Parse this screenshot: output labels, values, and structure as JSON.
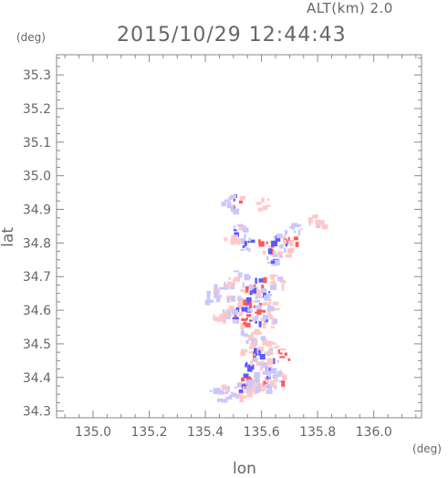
{
  "header": {
    "altitude_label": "ALT(km) 2.0",
    "timestamp": "2015/10/29 12:44:43"
  },
  "chart_data": {
    "type": "heatmap",
    "title": "2015/10/29 12:44:43",
    "subtitle": "ALT(km) 2.0",
    "xlabel": "lon",
    "ylabel": "lat",
    "x_unit": "(deg)",
    "y_unit": "(deg)",
    "xlim": [
      134.87,
      136.17
    ],
    "ylim": [
      34.28,
      35.36
    ],
    "x_ticks": [
      "135.0",
      "135.2",
      "135.4",
      "135.6",
      "135.8",
      "136.0"
    ],
    "y_ticks": [
      "34.3",
      "34.4",
      "34.5",
      "34.6",
      "34.7",
      "34.8",
      "34.9",
      "35.0",
      "35.1",
      "35.2",
      "35.3"
    ],
    "grid": false,
    "colors": {
      "positive": "#ff5a5a",
      "negative": "#5a5aff",
      "weak_positive": "#ffc8c8",
      "weak_negative": "#c8c8ff"
    },
    "blobs": [
      {
        "lon": 135.5,
        "lat": 34.93,
        "value": 0.8
      },
      {
        "lon": 135.48,
        "lat": 34.92,
        "value": -0.4
      },
      {
        "lon": 135.52,
        "lat": 34.84,
        "value": -0.6
      },
      {
        "lon": 135.49,
        "lat": 34.82,
        "value": 0.3
      },
      {
        "lon": 135.55,
        "lat": 34.8,
        "value": -0.8
      },
      {
        "lon": 135.61,
        "lat": 34.8,
        "value": 0.9
      },
      {
        "lon": 135.66,
        "lat": 34.82,
        "value": -0.7
      },
      {
        "lon": 135.7,
        "lat": 34.81,
        "value": 0.9
      },
      {
        "lon": 135.72,
        "lat": 34.85,
        "value": -0.5
      },
      {
        "lon": 135.63,
        "lat": 34.76,
        "value": -0.6
      },
      {
        "lon": 135.68,
        "lat": 34.78,
        "value": 0.4
      },
      {
        "lon": 135.45,
        "lat": 34.67,
        "value": -0.5
      },
      {
        "lon": 135.49,
        "lat": 34.69,
        "value": 0.4
      },
      {
        "lon": 135.52,
        "lat": 34.7,
        "value": -0.3
      },
      {
        "lon": 135.55,
        "lat": 34.66,
        "value": 0.7
      },
      {
        "lon": 135.58,
        "lat": 34.68,
        "value": -0.9
      },
      {
        "lon": 135.62,
        "lat": 34.67,
        "value": -0.7
      },
      {
        "lon": 135.65,
        "lat": 34.69,
        "value": 0.3
      },
      {
        "lon": 135.5,
        "lat": 34.63,
        "value": 0.5
      },
      {
        "lon": 135.53,
        "lat": 34.62,
        "value": -0.8
      },
      {
        "lon": 135.57,
        "lat": 34.61,
        "value": 0.9
      },
      {
        "lon": 135.6,
        "lat": 34.63,
        "value": -0.5
      },
      {
        "lon": 135.63,
        "lat": 34.62,
        "value": 0.6
      },
      {
        "lon": 135.48,
        "lat": 34.59,
        "value": -0.4
      },
      {
        "lon": 135.52,
        "lat": 34.58,
        "value": 0.8
      },
      {
        "lon": 135.56,
        "lat": 34.57,
        "value": 0.9
      },
      {
        "lon": 135.59,
        "lat": 34.58,
        "value": -0.6
      },
      {
        "lon": 135.62,
        "lat": 34.57,
        "value": 0.5
      },
      {
        "lon": 135.55,
        "lat": 34.53,
        "value": -0.4
      },
      {
        "lon": 135.58,
        "lat": 34.52,
        "value": 0.3
      },
      {
        "lon": 135.55,
        "lat": 34.49,
        "value": 0.6
      },
      {
        "lon": 135.59,
        "lat": 34.48,
        "value": -0.8
      },
      {
        "lon": 135.63,
        "lat": 34.49,
        "value": 0.4
      },
      {
        "lon": 135.67,
        "lat": 34.47,
        "value": 0.9
      },
      {
        "lon": 135.56,
        "lat": 34.45,
        "value": -0.9
      },
      {
        "lon": 135.6,
        "lat": 34.44,
        "value": 0.5
      },
      {
        "lon": 135.64,
        "lat": 34.44,
        "value": -0.7
      },
      {
        "lon": 135.67,
        "lat": 34.42,
        "value": -0.5
      },
      {
        "lon": 135.55,
        "lat": 34.4,
        "value": 0.9
      },
      {
        "lon": 135.59,
        "lat": 34.41,
        "value": -0.5
      },
      {
        "lon": 135.62,
        "lat": 34.39,
        "value": 0.7
      },
      {
        "lon": 135.65,
        "lat": 34.4,
        "value": -0.6
      },
      {
        "lon": 135.53,
        "lat": 34.38,
        "value": -0.7
      },
      {
        "lon": 135.57,
        "lat": 34.37,
        "value": 0.3
      },
      {
        "lon": 135.6,
        "lat": 34.37,
        "value": -0.4
      },
      {
        "lon": 135.48,
        "lat": 34.36,
        "value": -0.5
      },
      {
        "lon": 135.44,
        "lat": 34.35,
        "value": -0.4
      },
      {
        "lon": 135.52,
        "lat": 34.36,
        "value": 0.3
      },
      {
        "lon": 135.42,
        "lat": 34.64,
        "value": -0.3
      },
      {
        "lon": 135.44,
        "lat": 34.58,
        "value": 0.6
      },
      {
        "lon": 135.79,
        "lat": 34.87,
        "value": 0.2
      },
      {
        "lon": 135.6,
        "lat": 34.92,
        "value": 0.2
      }
    ]
  }
}
